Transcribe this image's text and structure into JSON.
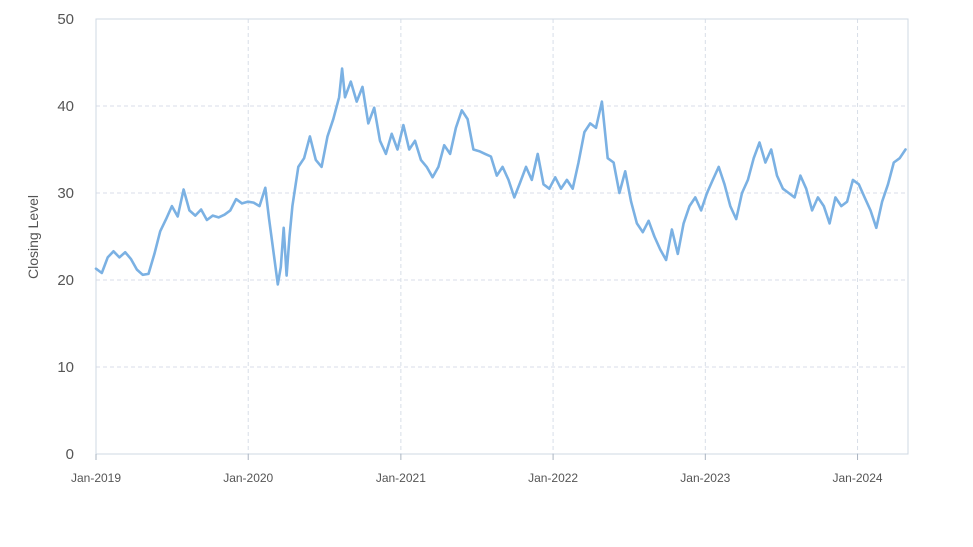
{
  "chart_data": {
    "type": "line",
    "title": "",
    "xlabel": "",
    "ylabel": "Closing Level",
    "ylim": [
      0,
      50
    ],
    "xlim": [
      "2019-01-01",
      "2024-05-01"
    ],
    "yticks": [
      "0",
      "10",
      "20",
      "30",
      "40",
      "50"
    ],
    "xticks": [
      {
        "date": "2019-01-01",
        "label": "Jan-2019"
      },
      {
        "date": "2020-01-01",
        "label": "Jan-2020"
      },
      {
        "date": "2021-01-01",
        "label": "Jan-2021"
      },
      {
        "date": "2022-01-01",
        "label": "Jan-2022"
      },
      {
        "date": "2023-01-01",
        "label": "Jan-2023"
      },
      {
        "date": "2024-01-01",
        "label": "Jan-2024"
      }
    ],
    "grid": true,
    "legend": "none",
    "line_color": "#7bb1e3",
    "series": [
      {
        "points": [
          [
            "2019-01-01",
            21.3
          ],
          [
            "2019-01-15",
            20.8
          ],
          [
            "2019-01-29",
            22.6
          ],
          [
            "2019-02-12",
            23.3
          ],
          [
            "2019-02-26",
            22.6
          ],
          [
            "2019-03-12",
            23.2
          ],
          [
            "2019-03-26",
            22.4
          ],
          [
            "2019-04-09",
            21.2
          ],
          [
            "2019-04-23",
            20.6
          ],
          [
            "2019-05-07",
            20.7
          ],
          [
            "2019-05-21",
            23.0
          ],
          [
            "2019-06-04",
            25.6
          ],
          [
            "2019-06-18",
            27.0
          ],
          [
            "2019-07-02",
            28.5
          ],
          [
            "2019-07-16",
            27.3
          ],
          [
            "2019-07-30",
            30.4
          ],
          [
            "2019-08-13",
            28.0
          ],
          [
            "2019-08-27",
            27.4
          ],
          [
            "2019-09-10",
            28.1
          ],
          [
            "2019-09-24",
            26.9
          ],
          [
            "2019-10-08",
            27.4
          ],
          [
            "2019-10-22",
            27.2
          ],
          [
            "2019-11-05",
            27.5
          ],
          [
            "2019-11-19",
            28.0
          ],
          [
            "2019-12-03",
            29.3
          ],
          [
            "2019-12-17",
            28.8
          ],
          [
            "2019-12-31",
            29.0
          ],
          [
            "2020-01-14",
            28.9
          ],
          [
            "2020-01-28",
            28.5
          ],
          [
            "2020-02-11",
            30.6
          ],
          [
            "2020-02-20",
            27.0
          ],
          [
            "2020-02-27",
            24.5
          ],
          [
            "2020-03-05",
            22.0
          ],
          [
            "2020-03-12",
            19.5
          ],
          [
            "2020-03-19",
            21.5
          ],
          [
            "2020-03-26",
            26.0
          ],
          [
            "2020-04-02",
            20.5
          ],
          [
            "2020-04-09",
            25.0
          ],
          [
            "2020-04-16",
            28.5
          ],
          [
            "2020-04-30",
            33.0
          ],
          [
            "2020-05-14",
            34.0
          ],
          [
            "2020-05-28",
            36.5
          ],
          [
            "2020-06-11",
            33.8
          ],
          [
            "2020-06-25",
            33.0
          ],
          [
            "2020-07-09",
            36.5
          ],
          [
            "2020-07-23",
            38.5
          ],
          [
            "2020-08-06",
            41.0
          ],
          [
            "2020-08-13",
            44.3
          ],
          [
            "2020-08-20",
            41.0
          ],
          [
            "2020-09-03",
            42.8
          ],
          [
            "2020-09-17",
            40.5
          ],
          [
            "2020-10-01",
            42.2
          ],
          [
            "2020-10-15",
            38.0
          ],
          [
            "2020-10-29",
            39.8
          ],
          [
            "2020-11-12",
            36.0
          ],
          [
            "2020-11-26",
            34.5
          ],
          [
            "2020-12-10",
            36.8
          ],
          [
            "2020-12-24",
            35.0
          ],
          [
            "2021-01-07",
            37.8
          ],
          [
            "2021-01-21",
            35.0
          ],
          [
            "2021-02-04",
            36.0
          ],
          [
            "2021-02-18",
            33.8
          ],
          [
            "2021-03-04",
            33.0
          ],
          [
            "2021-03-18",
            31.8
          ],
          [
            "2021-04-01",
            33.0
          ],
          [
            "2021-04-15",
            35.5
          ],
          [
            "2021-04-29",
            34.5
          ],
          [
            "2021-05-13",
            37.5
          ],
          [
            "2021-05-27",
            39.5
          ],
          [
            "2021-06-10",
            38.5
          ],
          [
            "2021-06-24",
            35.0
          ],
          [
            "2021-07-08",
            34.8
          ],
          [
            "2021-07-22",
            34.5
          ],
          [
            "2021-08-05",
            34.2
          ],
          [
            "2021-08-19",
            32.0
          ],
          [
            "2021-09-02",
            33.0
          ],
          [
            "2021-09-16",
            31.5
          ],
          [
            "2021-09-30",
            29.5
          ],
          [
            "2021-10-14",
            31.2
          ],
          [
            "2021-10-28",
            33.0
          ],
          [
            "2021-11-11",
            31.5
          ],
          [
            "2021-11-25",
            34.5
          ],
          [
            "2021-12-09",
            31.0
          ],
          [
            "2021-12-23",
            30.5
          ],
          [
            "2022-01-06",
            31.8
          ],
          [
            "2022-01-20",
            30.5
          ],
          [
            "2022-02-03",
            31.5
          ],
          [
            "2022-02-17",
            30.5
          ],
          [
            "2022-03-03",
            33.5
          ],
          [
            "2022-03-17",
            37.0
          ],
          [
            "2022-03-31",
            38.0
          ],
          [
            "2022-04-14",
            37.5
          ],
          [
            "2022-04-28",
            40.5
          ],
          [
            "2022-05-12",
            34.0
          ],
          [
            "2022-05-26",
            33.5
          ],
          [
            "2022-06-09",
            30.0
          ],
          [
            "2022-06-23",
            32.5
          ],
          [
            "2022-07-07",
            29.0
          ],
          [
            "2022-07-21",
            26.5
          ],
          [
            "2022-08-04",
            25.5
          ],
          [
            "2022-08-18",
            26.8
          ],
          [
            "2022-09-01",
            25.0
          ],
          [
            "2022-09-15",
            23.5
          ],
          [
            "2022-09-29",
            22.3
          ],
          [
            "2022-10-13",
            25.8
          ],
          [
            "2022-10-27",
            23.0
          ],
          [
            "2022-11-10",
            26.5
          ],
          [
            "2022-11-24",
            28.5
          ],
          [
            "2022-12-08",
            29.5
          ],
          [
            "2022-12-22",
            28.0
          ],
          [
            "2023-01-05",
            30.0
          ],
          [
            "2023-01-19",
            31.5
          ],
          [
            "2023-02-02",
            33.0
          ],
          [
            "2023-02-16",
            31.0
          ],
          [
            "2023-03-02",
            28.5
          ],
          [
            "2023-03-16",
            27.0
          ],
          [
            "2023-03-30",
            30.0
          ],
          [
            "2023-04-13",
            31.5
          ],
          [
            "2023-04-27",
            34.0
          ],
          [
            "2023-05-11",
            35.8
          ],
          [
            "2023-05-25",
            33.5
          ],
          [
            "2023-06-08",
            35.0
          ],
          [
            "2023-06-22",
            32.0
          ],
          [
            "2023-07-06",
            30.5
          ],
          [
            "2023-07-20",
            30.0
          ],
          [
            "2023-08-03",
            29.5
          ],
          [
            "2023-08-17",
            32.0
          ],
          [
            "2023-08-31",
            30.5
          ],
          [
            "2023-09-14",
            28.0
          ],
          [
            "2023-09-28",
            29.5
          ],
          [
            "2023-10-12",
            28.5
          ],
          [
            "2023-10-26",
            26.5
          ],
          [
            "2023-11-09",
            29.5
          ],
          [
            "2023-11-23",
            28.5
          ],
          [
            "2023-12-07",
            29.0
          ],
          [
            "2023-12-21",
            31.5
          ],
          [
            "2024-01-04",
            31.0
          ],
          [
            "2024-01-18",
            29.5
          ],
          [
            "2024-02-01",
            28.0
          ],
          [
            "2024-02-15",
            26.0
          ],
          [
            "2024-02-29",
            29.0
          ],
          [
            "2024-03-14",
            31.0
          ],
          [
            "2024-03-28",
            33.5
          ],
          [
            "2024-04-11",
            34.0
          ],
          [
            "2024-04-25",
            35.0
          ]
        ]
      }
    ]
  }
}
